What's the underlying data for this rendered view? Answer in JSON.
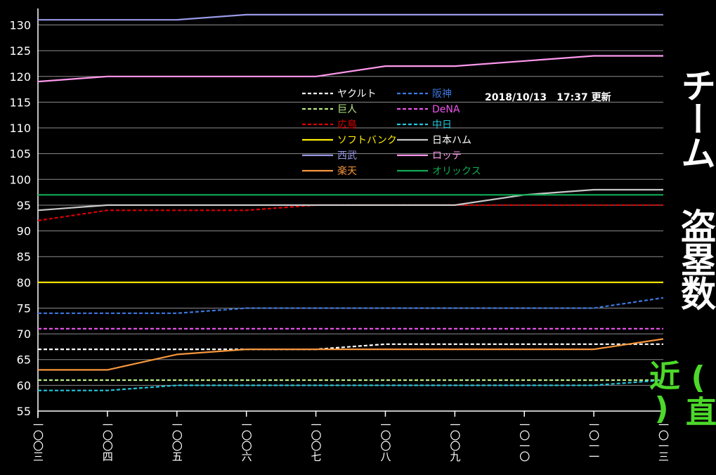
{
  "chart_data": {
    "type": "line",
    "title": "チーム 盗塁数",
    "subtitle": "(直近)",
    "timestamp": "2018/10/13　17:37 更新",
    "x": [
      "一〇〇三",
      "一〇〇四",
      "一〇〇五",
      "一〇〇六",
      "一〇〇七",
      "一〇〇八",
      "一〇〇九",
      "一〇一〇",
      "一〇一一",
      "一〇一三"
    ],
    "ylim": [
      55,
      130
    ],
    "yticks": [
      55,
      60,
      65,
      70,
      75,
      80,
      85,
      90,
      95,
      100,
      105,
      110,
      115,
      120,
      125,
      130
    ],
    "grid": true,
    "legend_position": "top-center",
    "series": [
      {
        "name": "ヤクルト",
        "color": "#ffffff",
        "dash": true,
        "label_color": "#ffffff",
        "values": [
          67,
          67,
          67,
          67,
          67,
          68,
          68,
          68,
          68,
          68
        ]
      },
      {
        "name": "阪神",
        "color": "#3c78e0",
        "dash": true,
        "label_color": "#3c78e0",
        "values": [
          74,
          74,
          74,
          75,
          75,
          75,
          75,
          75,
          75,
          77
        ]
      },
      {
        "name": "巨人",
        "color": "#b8e986",
        "dash": true,
        "label_color": "#b8e986",
        "values": [
          61,
          61,
          61,
          61,
          61,
          61,
          61,
          61,
          61,
          61
        ]
      },
      {
        "name": "DeNA",
        "color": "#ee55ee",
        "dash": true,
        "label_color": "#ee55ee",
        "values": [
          71,
          71,
          71,
          71,
          71,
          71,
          71,
          71,
          71,
          71
        ]
      },
      {
        "name": "広島",
        "color": "#dd0000",
        "dash": true,
        "label_color": "#dd0000",
        "values": [
          92,
          94,
          94,
          94,
          95,
          95,
          95,
          95,
          95,
          95
        ]
      },
      {
        "name": "中日",
        "color": "#22c8dd",
        "dash": true,
        "label_color": "#22c8dd",
        "values": [
          59,
          59,
          60,
          60,
          60,
          60,
          60,
          60,
          60,
          61
        ]
      },
      {
        "name": "ソフトバンク",
        "color": "#ffee00",
        "dash": false,
        "label_color": "#ffee00",
        "values": [
          80,
          80,
          80,
          80,
          80,
          80,
          80,
          80,
          80,
          80
        ]
      },
      {
        "name": "日本ハム",
        "color": "#c8c8c8",
        "dash": false,
        "label_color": "#ffffff",
        "values": [
          94,
          95,
          95,
          95,
          95,
          95,
          95,
          97,
          98,
          98
        ]
      },
      {
        "name": "西武",
        "color": "#9a9ae8",
        "dash": false,
        "label_color": "#9a9ae8",
        "values": [
          131,
          131,
          131,
          132,
          132,
          132,
          132,
          132,
          132,
          132
        ]
      },
      {
        "name": "ロッテ",
        "color": "#ff99ee",
        "dash": false,
        "label_color": "#ff99ee",
        "values": [
          119,
          120,
          120,
          120,
          120,
          122,
          122,
          123,
          124,
          124
        ]
      },
      {
        "name": "楽天",
        "color": "#f7963c",
        "dash": false,
        "label_color": "#f7963c",
        "values": [
          63,
          63,
          66,
          67,
          67,
          67,
          67,
          67,
          67,
          69
        ]
      },
      {
        "name": "オリックス",
        "color": "#11aa55",
        "dash": false,
        "label_color": "#11aa55",
        "values": [
          97,
          97,
          97,
          97,
          97,
          97,
          97,
          97,
          97,
          97
        ]
      }
    ]
  }
}
